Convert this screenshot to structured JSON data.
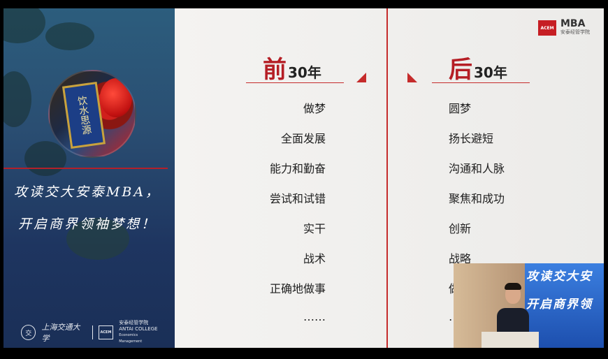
{
  "left_panel": {
    "slogan_line1": "攻读交大安泰MBA，",
    "slogan_line2": "开启商界领袖梦想！",
    "photo_plaque": "饮水思源",
    "university_name": "上海交通大学",
    "seal_label": "交",
    "acem_mark": "ACEM",
    "antai_cn": "安泰经管学院",
    "antai_en1": "ANTAI COLLEGE",
    "antai_en2": "Economics Management"
  },
  "slide": {
    "logo": {
      "mark": "ACEM",
      "title": "MBA",
      "subtitle": "安泰经管学院"
    },
    "left_column": {
      "heading_big": "前",
      "heading_small": "30年",
      "items": [
        "做梦",
        "全面发展",
        "能力和勤奋",
        "尝试和试错",
        "实干",
        "战术",
        "正确地做事",
        "……"
      ]
    },
    "right_column": {
      "heading_big": "后",
      "heading_small": "30年",
      "items": [
        "圆梦",
        "扬长避短",
        "沟通和人脉",
        "聚焦和成功",
        "创新",
        "战略",
        "做",
        "…"
      ]
    },
    "colors": {
      "accent": "#c52b2b",
      "heading": "#b51e25"
    }
  },
  "video_overlay": {
    "screen_line1": "攻读交大安",
    "screen_line2": "开启商界领"
  }
}
